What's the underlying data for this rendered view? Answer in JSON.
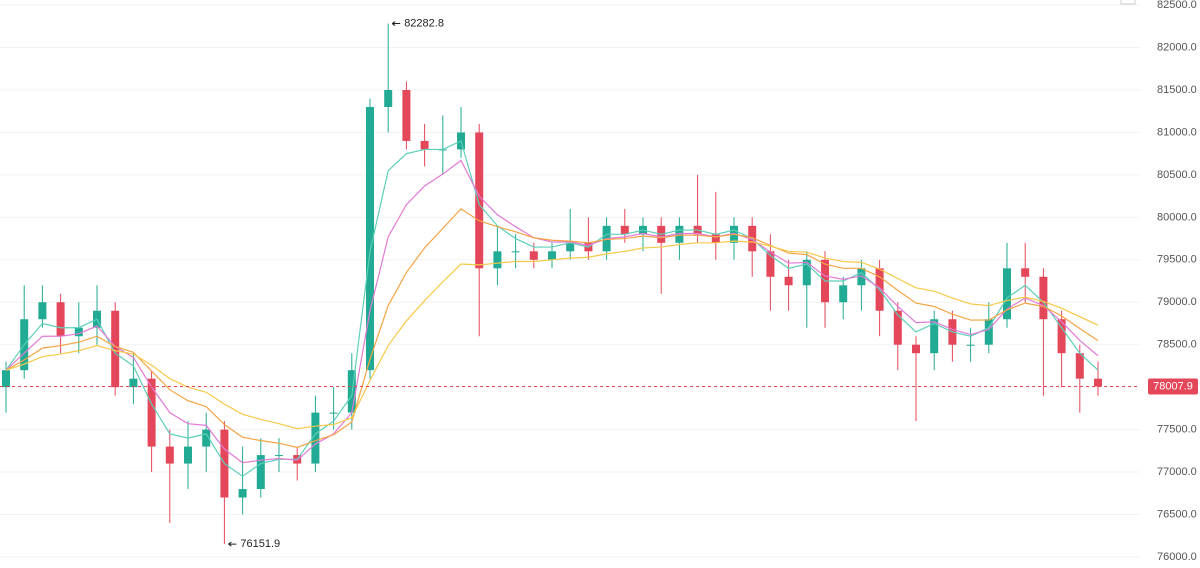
{
  "chart_data": {
    "type": "candlestick",
    "ylim": [
      75870,
      82560
    ],
    "yticks": [
      {
        "value": 76000,
        "label": "76000.0"
      },
      {
        "value": 76500,
        "label": "76500.0"
      },
      {
        "value": 77000,
        "label": "77000.0"
      },
      {
        "value": 77500,
        "label": "77500.0"
      },
      {
        "value": 78000,
        "label": "78000.0"
      },
      {
        "value": 78500,
        "label": "78500.0"
      },
      {
        "value": 79000,
        "label": "79000.0"
      },
      {
        "value": 79500,
        "label": "79500.0"
      },
      {
        "value": 80000,
        "label": "80000.0"
      },
      {
        "value": 80500,
        "label": "80500.0"
      },
      {
        "value": 81000,
        "label": "81000.0"
      },
      {
        "value": 81500,
        "label": "81500.0"
      },
      {
        "value": 82000,
        "label": "82000.0"
      },
      {
        "value": 82500,
        "label": "82500.0"
      }
    ],
    "grid": true,
    "up_color": "#22ab94",
    "down_color": "#e5475a",
    "open": [
      78000,
      78200,
      78800,
      79000,
      78600,
      78700,
      78900,
      78000,
      78100,
      77300,
      77100,
      77300,
      77500,
      76700,
      76800,
      77200,
      77200,
      77100,
      77700,
      77700,
      78200,
      81300,
      81500,
      80900,
      80800,
      80800,
      81000,
      79400,
      79600,
      79600,
      79500,
      79600,
      79700,
      79600,
      79900,
      79800,
      79900,
      79700,
      79900,
      79800,
      79700,
      79900,
      79600,
      79300,
      79200,
      79500,
      79000,
      79200,
      79400,
      78900,
      78500,
      78400,
      78800,
      78500,
      78500,
      78800,
      79400,
      79300,
      78800,
      78400,
      78100
    ],
    "high": [
      78300,
      79200,
      79200,
      79100,
      79000,
      79200,
      79000,
      78400,
      78200,
      77500,
      77600,
      77700,
      77600,
      77300,
      77400,
      77400,
      77300,
      77900,
      78000,
      78400,
      81400,
      82282.8,
      81600,
      81100,
      81200,
      81300,
      81100,
      79900,
      79800,
      79700,
      79700,
      80100,
      80000,
      80000,
      80100,
      80000,
      80000,
      80000,
      80500,
      80300,
      80000,
      80000,
      79800,
      79500,
      79600,
      79600,
      79300,
      79500,
      79500,
      79000,
      78600,
      78900,
      78900,
      78700,
      79000,
      79700,
      79700,
      79400,
      78900,
      78500,
      78300
    ],
    "low": [
      77700,
      78100,
      78700,
      78400,
      78400,
      78500,
      77900,
      77800,
      77000,
      76400,
      76800,
      77000,
      76151.9,
      76500,
      76700,
      77000,
      76900,
      77000,
      77500,
      77500,
      78100,
      81000,
      80800,
      80600,
      80500,
      80700,
      78600,
      79200,
      79400,
      79400,
      79400,
      79500,
      79500,
      79500,
      79700,
      79600,
      79100,
      79500,
      79700,
      79500,
      79500,
      79300,
      78900,
      78900,
      78700,
      78700,
      78800,
      78900,
      78600,
      78200,
      77600,
      78200,
      78300,
      78300,
      78400,
      78700,
      79000,
      77900,
      78000,
      77700,
      77900
    ],
    "close": [
      78200,
      78800,
      79000,
      78600,
      78700,
      78900,
      78000,
      78100,
      77300,
      77100,
      77300,
      77500,
      76700,
      76800,
      77200,
      77200,
      77100,
      77700,
      77700,
      78200,
      81300,
      81500,
      80900,
      80800,
      80800,
      81000,
      79400,
      79600,
      79600,
      79500,
      79600,
      79700,
      79600,
      79900,
      79800,
      79900,
      79700,
      79900,
      79800,
      79700,
      79900,
      79600,
      79300,
      79200,
      79500,
      79000,
      79200,
      79400,
      78900,
      78500,
      78400,
      78800,
      78500,
      78500,
      78800,
      79400,
      79300,
      78800,
      78400,
      78100,
      78007.9
    ],
    "lines": [
      {
        "color": "#5ccfb8",
        "values": [
          78200,
          78500,
          78750,
          78700,
          78700,
          78800,
          78400,
          78250,
          77800,
          77450,
          77400,
          77450,
          77100,
          76950,
          77100,
          77150,
          77150,
          77450,
          77600,
          77900,
          79600,
          80550,
          80750,
          80800,
          80800,
          80900,
          80150,
          79900,
          79750,
          79650,
          79650,
          79700,
          79650,
          79800,
          79800,
          79850,
          79800,
          79850,
          79850,
          79800,
          79850,
          79750,
          79550,
          79400,
          79450,
          79250,
          79250,
          79350,
          79150,
          78850,
          78650,
          78750,
          78650,
          78600,
          78700,
          79050,
          79200,
          79000,
          78700,
          78400,
          78200
        ]
      },
      {
        "color": "#e27ad6",
        "values": [
          78200,
          78400,
          78600,
          78600,
          78630,
          78720,
          78480,
          78350,
          78000,
          77700,
          77570,
          77550,
          77270,
          77110,
          77140,
          77160,
          77140,
          77330,
          77450,
          77700,
          78900,
          79770,
          80150,
          80370,
          80510,
          80670,
          80250,
          80030,
          79890,
          79760,
          79710,
          79710,
          79670,
          79750,
          79770,
          79810,
          79770,
          79810,
          79810,
          79770,
          79810,
          79740,
          79590,
          79460,
          79470,
          79310,
          79270,
          79310,
          79170,
          78950,
          78760,
          78770,
          78680,
          78620,
          78680,
          78920,
          79050,
          78960,
          78770,
          78550,
          78370
        ]
      },
      {
        "color": "#f5a445",
        "values": [
          78200,
          78320,
          78460,
          78490,
          78530,
          78600,
          78480,
          78410,
          78190,
          77970,
          77840,
          77770,
          77560,
          77410,
          77370,
          77340,
          77290,
          77370,
          77440,
          77590,
          78330,
          78960,
          79350,
          79640,
          79870,
          80100,
          79960,
          79890,
          79830,
          79760,
          79730,
          79720,
          79700,
          79740,
          79750,
          79780,
          79760,
          79790,
          79790,
          79770,
          79800,
          79760,
          79670,
          79580,
          79560,
          79450,
          79400,
          79400,
          79300,
          79140,
          78990,
          78950,
          78860,
          78790,
          78790,
          78910,
          78990,
          78950,
          78840,
          78690,
          78550
        ]
      },
      {
        "color": "#f7c948",
        "values": [
          78200,
          78270,
          78360,
          78390,
          78430,
          78490,
          78430,
          78390,
          78260,
          78100,
          78000,
          77940,
          77800,
          77680,
          77620,
          77570,
          77510,
          77540,
          77560,
          77640,
          78080,
          78490,
          78780,
          79020,
          79240,
          79450,
          79440,
          79460,
          79480,
          79480,
          79500,
          79520,
          79530,
          79570,
          79600,
          79640,
          79650,
          79680,
          79700,
          79700,
          79720,
          79710,
          79660,
          79600,
          79590,
          79520,
          79480,
          79470,
          79390,
          79280,
          79170,
          79130,
          79050,
          78980,
          78960,
          79020,
          79060,
          79010,
          78930,
          78830,
          78730
        ]
      }
    ],
    "high_label": "82282.8",
    "low_label": "76151.9",
    "last_price_label": "78007.9"
  }
}
